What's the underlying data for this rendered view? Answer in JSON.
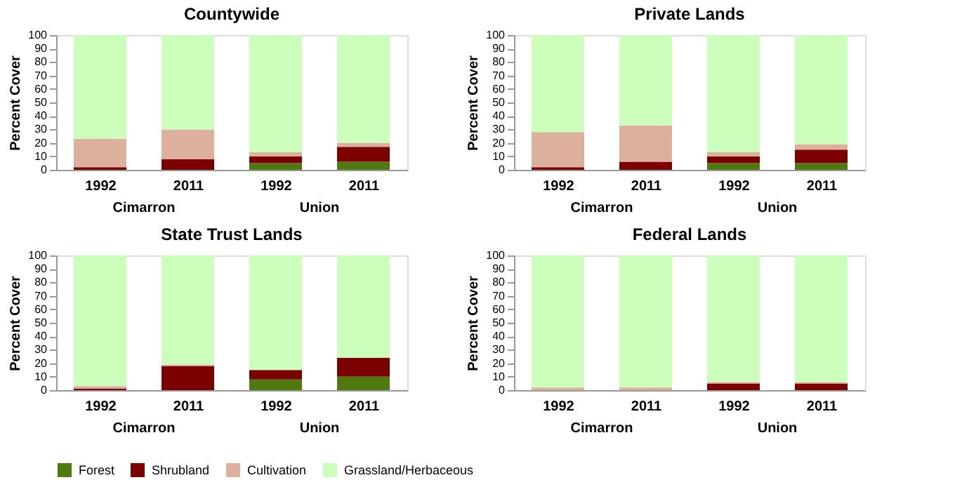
{
  "chart_data": [
    {
      "type": "bar",
      "title": "Countywide",
      "ylabel": "Percent Cover",
      "stacked": true,
      "categories": [
        "1992",
        "2011",
        "1992",
        "2011"
      ],
      "annotations": [
        "Cimarron",
        "Union"
      ],
      "ylim": [
        0,
        100
      ],
      "yticks": [
        0,
        10,
        20,
        30,
        40,
        50,
        60,
        70,
        80,
        90,
        100
      ],
      "grid": false,
      "legend": "bottom",
      "series": [
        {
          "name": "Forest",
          "color": "#4f7a0f",
          "values": [
            0,
            0,
            5,
            6
          ]
        },
        {
          "name": "Shrubland",
          "color": "#7b0000",
          "values": [
            2,
            8,
            5,
            11
          ]
        },
        {
          "name": "Cultivation",
          "color": "#dcb09c",
          "values": [
            21,
            22,
            3,
            3
          ]
        },
        {
          "name": "Grassland/Herbaceous",
          "color": "#ccffbb",
          "values": [
            77,
            70,
            87,
            80
          ]
        }
      ]
    },
    {
      "type": "bar",
      "title": "Private Lands",
      "ylabel": "Percent Cover",
      "stacked": true,
      "categories": [
        "1992",
        "2011",
        "1992",
        "2011"
      ],
      "annotations": [
        "Cimarron",
        "Union"
      ],
      "ylim": [
        0,
        100
      ],
      "yticks": [
        0,
        10,
        20,
        30,
        40,
        50,
        60,
        70,
        80,
        90,
        100
      ],
      "grid": false,
      "legend": "bottom",
      "series": [
        {
          "name": "Forest",
          "color": "#4f7a0f",
          "values": [
            0,
            0,
            5,
            5
          ]
        },
        {
          "name": "Shrubland",
          "color": "#7b0000",
          "values": [
            2,
            6,
            5,
            10
          ]
        },
        {
          "name": "Cultivation",
          "color": "#dcb09c",
          "values": [
            26,
            27,
            3,
            4
          ]
        },
        {
          "name": "Grassland/Herbaceous",
          "color": "#ccffbb",
          "values": [
            72,
            67,
            87,
            81
          ]
        }
      ]
    },
    {
      "type": "bar",
      "title": "State Trust Lands",
      "ylabel": "Percent Cover",
      "stacked": true,
      "categories": [
        "1992",
        "2011",
        "1992",
        "2011"
      ],
      "annotations": [
        "Cimarron",
        "Union"
      ],
      "ylim": [
        0,
        100
      ],
      "yticks": [
        0,
        10,
        20,
        30,
        40,
        50,
        60,
        70,
        80,
        90,
        100
      ],
      "grid": false,
      "legend": "bottom",
      "series": [
        {
          "name": "Forest",
          "color": "#4f7a0f",
          "values": [
            0,
            0,
            8,
            10
          ]
        },
        {
          "name": "Shrubland",
          "color": "#7b0000",
          "values": [
            1,
            18,
            7,
            14
          ]
        },
        {
          "name": "Cultivation",
          "color": "#dcb09c",
          "values": [
            2,
            1,
            0,
            0
          ]
        },
        {
          "name": "Grassland/Herbaceous",
          "color": "#ccffbb",
          "values": [
            97,
            81,
            85,
            76
          ]
        }
      ]
    },
    {
      "type": "bar",
      "title": "Federal Lands",
      "ylabel": "Percent Cover",
      "stacked": true,
      "categories": [
        "1992",
        "2011",
        "1992",
        "2011"
      ],
      "annotations": [
        "Cimarron",
        "Union"
      ],
      "ylim": [
        0,
        100
      ],
      "yticks": [
        0,
        10,
        20,
        30,
        40,
        50,
        60,
        70,
        80,
        90,
        100
      ],
      "grid": false,
      "legend": "bottom",
      "series": [
        {
          "name": "Forest",
          "color": "#4f7a0f",
          "values": [
            0,
            0,
            0,
            0
          ]
        },
        {
          "name": "Shrubland",
          "color": "#7b0000",
          "values": [
            0,
            0,
            5,
            5
          ]
        },
        {
          "name": "Cultivation",
          "color": "#dcb09c",
          "values": [
            2,
            2,
            1,
            1
          ]
        },
        {
          "name": "Grassland/Herbaceous",
          "color": "#ccffbb",
          "values": [
            98,
            98,
            94,
            94
          ]
        }
      ]
    }
  ]
}
